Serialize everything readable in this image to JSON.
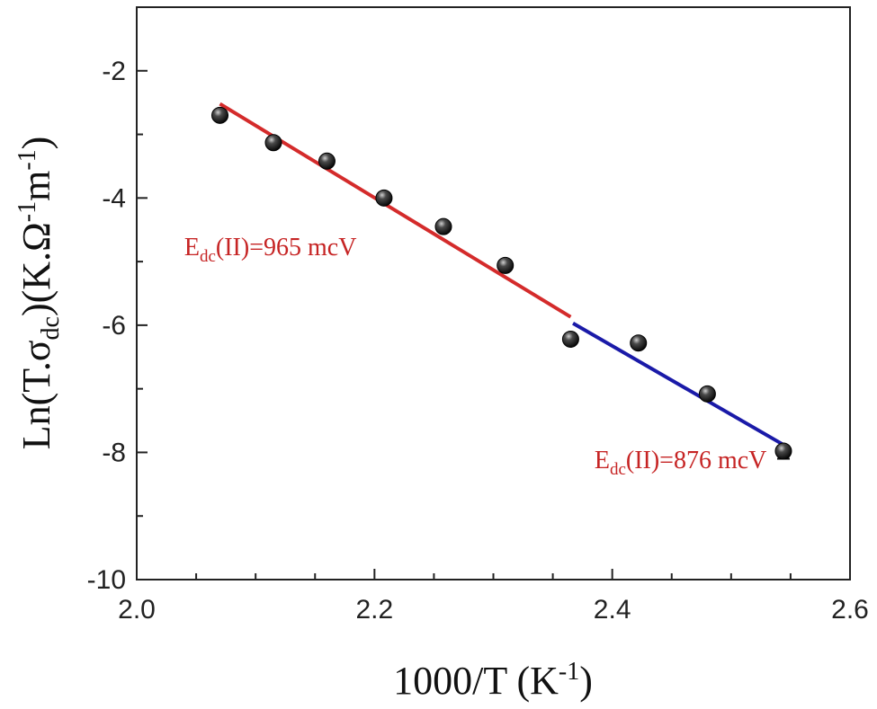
{
  "chart_data": {
    "type": "scatter",
    "xlabel": {
      "main": "1000/T (K",
      "sup": "-1",
      "end": ")"
    },
    "ylabel": {
      "p1": "Ln(T.σ",
      "sub1": "dc",
      "p2": ")(K.Ω",
      "sup1": "-1",
      "p3": "m",
      "sup2": "-1",
      "p4": ")"
    },
    "xlim": [
      2.0,
      2.6
    ],
    "ylim": [
      -10,
      -1
    ],
    "x_ticks": [
      "2.0",
      "2.2",
      "2.4",
      "2.6"
    ],
    "y_ticks": [
      "-10",
      "-8",
      "-6",
      "-4",
      "-2"
    ],
    "grid": false,
    "points": {
      "x": [
        2.07,
        2.115,
        2.16,
        2.208,
        2.258,
        2.31,
        2.365,
        2.422,
        2.48,
        2.544
      ],
      "y": [
        -2.7,
        -3.13,
        -3.42,
        -4.0,
        -4.45,
        -5.06,
        -6.22,
        -6.28,
        -7.08,
        -7.98
      ],
      "err": [
        0.05,
        0.05,
        0.05,
        0.05,
        0.05,
        0.06,
        0.07,
        0.07,
        0.08,
        0.12
      ]
    },
    "fits": [
      {
        "x": [
          2.07,
          2.365
        ],
        "y": [
          -2.52,
          -5.87
        ],
        "color": "#d42b2b"
      },
      {
        "x": [
          2.367,
          2.544
        ],
        "y": [
          -5.97,
          -7.88
        ],
        "color": "#1a1aa8"
      }
    ],
    "annotations": [
      {
        "pre": "E",
        "sub": "dc",
        "post": "(II)=965 mcV",
        "x": 2.04,
        "y": -4.9,
        "color": "#c62424"
      },
      {
        "pre": "E",
        "sub": "dc",
        "post": "(II)=876 mcV",
        "x": 2.385,
        "y": -8.25,
        "color": "#c62424"
      }
    ]
  }
}
